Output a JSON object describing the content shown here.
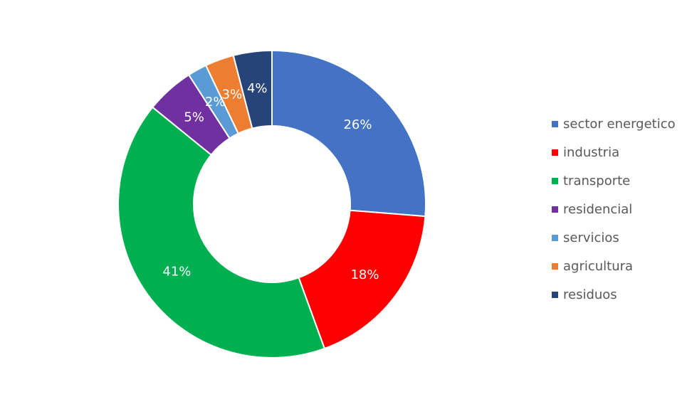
{
  "chart_data": {
    "type": "pie",
    "donut": true,
    "legend_position": "right",
    "slices": [
      {
        "label": "sector energetico",
        "value": 26,
        "value_label": "26%",
        "color": "#4472C4"
      },
      {
        "label": "industria",
        "value": 18,
        "value_label": "18%",
        "color": "#FF0000"
      },
      {
        "label": "transporte",
        "value": 41,
        "value_label": "41%",
        "color": "#00B050"
      },
      {
        "label": "residencial",
        "value": 5,
        "value_label": "5%",
        "color": "#7030A0"
      },
      {
        "label": "servicios",
        "value": 2,
        "value_label": "2%",
        "color": "#5B9BD5"
      },
      {
        "label": "agricultura",
        "value": 3,
        "value_label": "3%",
        "color": "#ED7D31"
      },
      {
        "label": "residuos",
        "value": 4,
        "value_label": "4%",
        "color": "#264478"
      }
    ]
  }
}
